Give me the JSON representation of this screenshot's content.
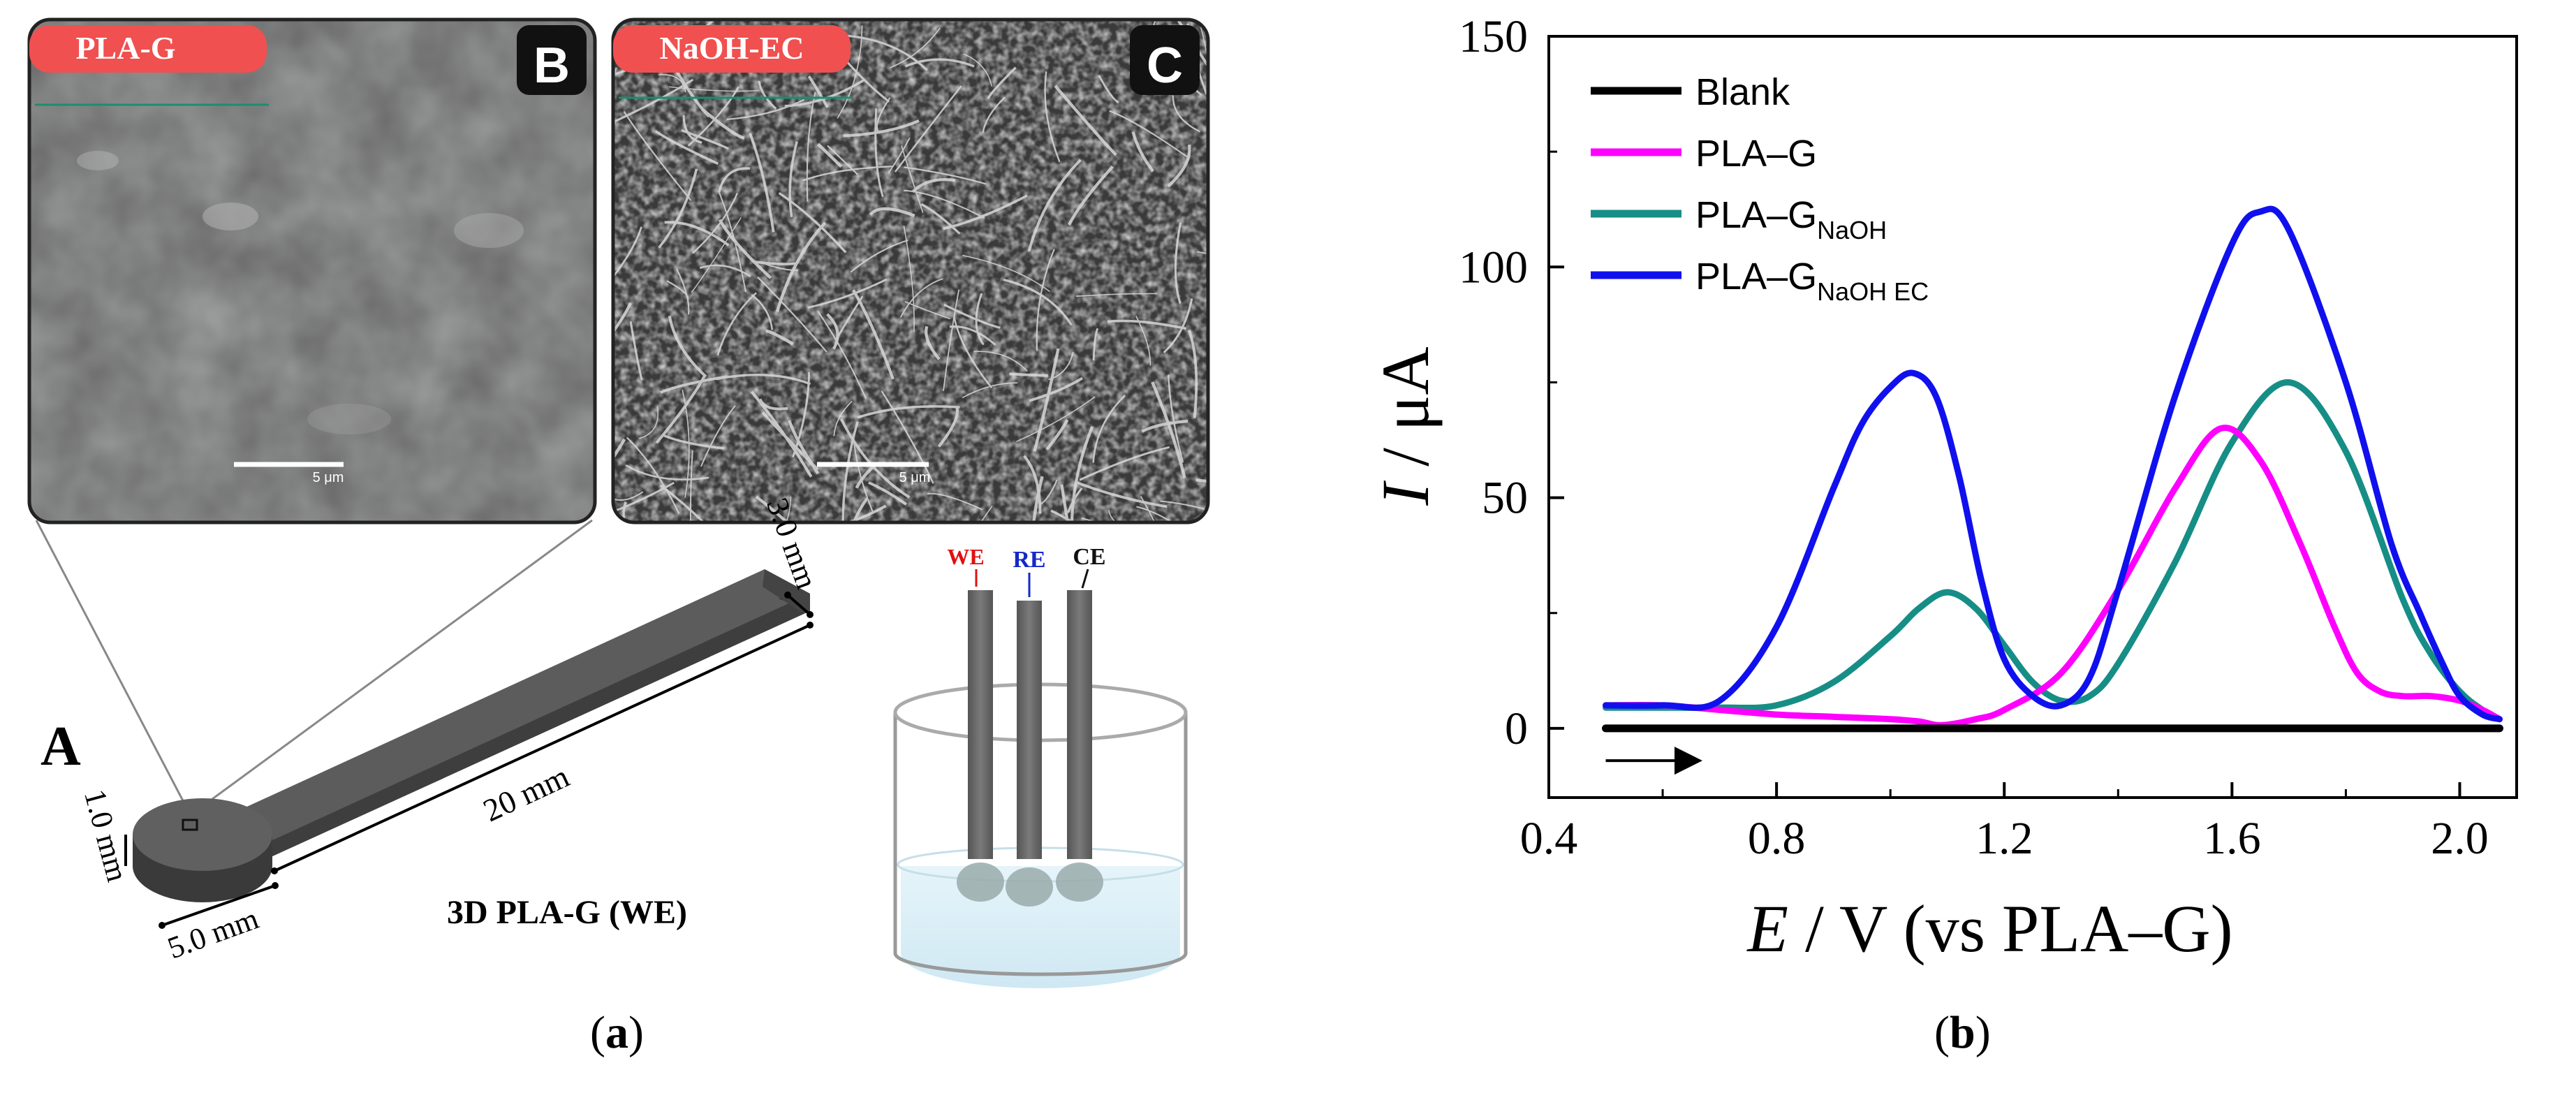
{
  "panel_a": {
    "caption": "a",
    "label_A": "A",
    "label_B": "B",
    "label_C": "C",
    "sem_B_tag": "PLA-G",
    "sem_C_tag": "NaOH-EC",
    "sem_B_scale": "5 μm",
    "sem_C_scale": "5 μm",
    "dim_width": "3.0 mm",
    "dim_length": "20 mm",
    "dim_thickness": "1.0 mm",
    "dim_disk": "5.0 mm",
    "electrode_name": "3D PLA-G (WE)",
    "cell_labels": {
      "we": "WE",
      "re": "RE",
      "ce": "CE"
    },
    "colors": {
      "tag": "#f05050",
      "we": "#e01010",
      "re": "#1428c8",
      "ce": "#111111"
    }
  },
  "panel_b": {
    "caption": "b"
  },
  "chart_data": {
    "type": "line",
    "xlabel_italic": "E",
    "xlabel_rest": " / V (vs PLA–G)",
    "ylabel_italic": "I",
    "ylabel_rest": " / μA",
    "xlim": [
      0.4,
      2.1
    ],
    "ylim": [
      -15,
      150
    ],
    "xticks": [
      0.4,
      0.8,
      1.2,
      1.6,
      2.0
    ],
    "xtick_labels": [
      "0.4",
      "0.8",
      "1.2",
      "1.6",
      "2.0"
    ],
    "yticks": [
      0,
      50,
      100,
      150
    ],
    "ytick_labels": [
      "0",
      "50",
      "100",
      "150"
    ],
    "legend_position": "top-left",
    "grid": false,
    "series": [
      {
        "name": "Blank",
        "sub": "",
        "color": "#000000",
        "x": [
          0.5,
          0.7,
          0.9,
          1.1,
          1.3,
          1.5,
          1.7,
          1.9,
          2.07
        ],
        "y": [
          0,
          0,
          0,
          0,
          0,
          0,
          0,
          0,
          0
        ]
      },
      {
        "name": "PLA–G",
        "sub": "",
        "color": "#ff00ff",
        "x": [
          0.5,
          0.6,
          0.7,
          0.8,
          0.9,
          1.0,
          1.05,
          1.09,
          1.15,
          1.2,
          1.3,
          1.4,
          1.5,
          1.58,
          1.65,
          1.72,
          1.78,
          1.82,
          1.86,
          1.9,
          1.95,
          2.0,
          2.04,
          2.07
        ],
        "y": [
          5,
          5,
          4,
          3,
          2.5,
          2,
          1.5,
          0.7,
          2,
          4,
          12,
          30,
          52,
          65,
          58,
          40,
          22,
          12,
          8,
          7,
          7,
          6,
          4,
          2
        ]
      },
      {
        "name": "PLA–G",
        "sub": "NaOH",
        "color": "#168e86",
        "x": [
          0.5,
          0.6,
          0.7,
          0.8,
          0.9,
          1.0,
          1.05,
          1.1,
          1.15,
          1.2,
          1.25,
          1.3,
          1.35,
          1.4,
          1.5,
          1.6,
          1.7,
          1.8,
          1.9,
          1.95,
          2.0,
          2.04,
          2.07
        ],
        "y": [
          4.5,
          4.5,
          4.5,
          5,
          10,
          20,
          26,
          29.5,
          26,
          18,
          10,
          6,
          7,
          14,
          36,
          62,
          75,
          60,
          28,
          16,
          8,
          4,
          2
        ]
      },
      {
        "name": "PLA–G",
        "sub": "NaOH EC",
        "color": "#1010ee",
        "x": [
          0.5,
          0.6,
          0.7,
          0.8,
          0.9,
          0.95,
          1.0,
          1.04,
          1.08,
          1.12,
          1.16,
          1.2,
          1.25,
          1.3,
          1.35,
          1.4,
          1.5,
          1.6,
          1.65,
          1.7,
          1.8,
          1.88,
          1.93,
          1.97,
          2.0,
          2.04,
          2.07
        ],
        "y": [
          5,
          5,
          6,
          22,
          52,
          66,
          74,
          77,
          72,
          55,
          32,
          15,
          7,
          5,
          11,
          30,
          72,
          105,
          112,
          108,
          75,
          40,
          25,
          14,
          7,
          3,
          2
        ]
      }
    ],
    "scan_arrow": {
      "x_from": 0.5,
      "x_to": 0.66,
      "y": -7
    }
  }
}
